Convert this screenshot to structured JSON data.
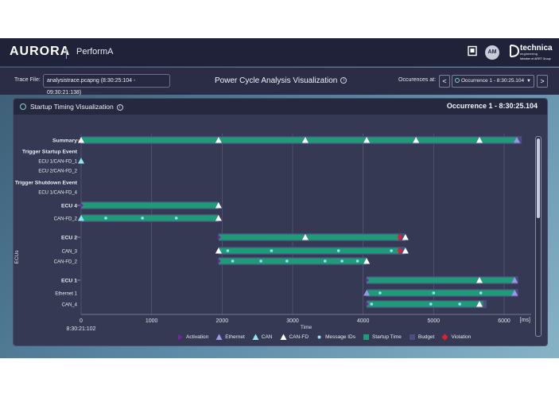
{
  "app": {
    "brand": "AURORA",
    "module": "PerformA",
    "icons": [
      "notes-icon",
      "avatar",
      "technica-logo"
    ],
    "user_initials": "AM",
    "logo": {
      "name": "technica",
      "sub": "engineering",
      "member": "Member of ARRT Group"
    }
  },
  "toolbar": {
    "trace_label": "Trace File:",
    "trace_value": "analysistrace.pcapng (8:30:25:104 - 09:30:21:138)",
    "title": "Power Cycle Analysis Visualization",
    "occurrences_label": "Occurences at:",
    "occurrence_value": "Occurrence 1 - 8:30:25.104",
    "prev": "<",
    "next": ">"
  },
  "panel": {
    "title": "Startup Timing Visualization",
    "occurrence": "Occurrence 1 - 8:30:25.104"
  },
  "chart_data": {
    "type": "gantt",
    "xlabel": "Time",
    "ylabel": "ECUs",
    "x_unit": "[ms]",
    "x_start_label": "8:30:21:102",
    "xlim": [
      0,
      6300
    ],
    "x_ticks": [
      0,
      1000,
      2000,
      3000,
      4000,
      5000,
      6000
    ],
    "grid": true,
    "legend_position": "bottom",
    "colors": {
      "startup": "#1e9c77",
      "budget": "#4b4f80",
      "activation": "#7a1fa2",
      "ethernet": "#9a96e8",
      "can": "#8fe6f0",
      "canfd": "#ffffff",
      "message": "#8fe6f0",
      "violation": "#e0202a"
    },
    "legend": [
      {
        "key": "activation",
        "label": "Activation",
        "shape": "triangle-right"
      },
      {
        "key": "ethernet",
        "label": "Ethernet",
        "shape": "triangle"
      },
      {
        "key": "can",
        "label": "CAN",
        "shape": "triangle"
      },
      {
        "key": "canfd",
        "label": "CAN-FD",
        "shape": "triangle"
      },
      {
        "key": "message",
        "label": "Message IDs",
        "shape": "dot"
      },
      {
        "key": "startup",
        "label": "Startup Time",
        "shape": "square"
      },
      {
        "key": "budget",
        "label": "Budget",
        "shape": "square"
      },
      {
        "key": "violation",
        "label": "Violation",
        "shape": "diamond"
      }
    ],
    "rows": [
      {
        "label": "Summary",
        "bold": true,
        "budget": [
          0,
          6250
        ],
        "startup": [
          0,
          6180
        ],
        "markers": [
          {
            "t": 0,
            "type": "canfd"
          },
          {
            "t": 1950,
            "type": "canfd"
          },
          {
            "t": 3180,
            "type": "canfd"
          },
          {
            "t": 4050,
            "type": "canfd"
          },
          {
            "t": 4750,
            "type": "canfd"
          },
          {
            "t": 5650,
            "type": "canfd"
          },
          {
            "t": 6180,
            "type": "ethernet"
          }
        ]
      },
      {
        "label": "Trigger Startup Event",
        "bold": true
      },
      {
        "label": "ECU 1/CAN-FD_1",
        "markers": [
          {
            "t": 0,
            "type": "can"
          }
        ]
      },
      {
        "label": "ECU 2/CAN-FD_2"
      },
      {
        "label": "Trigger Shutdown Event",
        "bold": true
      },
      {
        "label": "ECU 1/CAN-FD_4"
      },
      {
        "label": "ECU 4",
        "bold": true,
        "budget": [
          0,
          1950
        ],
        "startup": [
          0,
          1950
        ],
        "markers": [
          {
            "t": 0,
            "type": "activation"
          },
          {
            "t": 1950,
            "type": "canfd"
          }
        ]
      },
      {
        "label": "CAN-FD_2",
        "budget": [
          0,
          1950
        ],
        "startup": [
          0,
          1950
        ],
        "markers": [
          {
            "t": 0,
            "type": "can"
          },
          {
            "t": 350,
            "type": "message"
          },
          {
            "t": 870,
            "type": "message"
          },
          {
            "t": 1350,
            "type": "message"
          },
          {
            "t": 1950,
            "type": "canfd"
          }
        ]
      },
      {
        "label": "ECU 2",
        "bold": true,
        "budget": [
          1950,
          4600
        ],
        "startup": [
          1950,
          4500
        ],
        "markers": [
          {
            "t": 1950,
            "type": "activation"
          },
          {
            "t": 3180,
            "type": "canfd"
          },
          {
            "t": 4520,
            "type": "violation"
          },
          {
            "t": 4600,
            "type": "canfd"
          }
        ]
      },
      {
        "label": "CAN_3",
        "budget": [
          1950,
          4600
        ],
        "startup": [
          1950,
          4500
        ],
        "markers": [
          {
            "t": 1950,
            "type": "canfd"
          },
          {
            "t": 2080,
            "type": "message"
          },
          {
            "t": 2700,
            "type": "message"
          },
          {
            "t": 3650,
            "type": "message"
          },
          {
            "t": 4400,
            "type": "message"
          },
          {
            "t": 4520,
            "type": "violation"
          },
          {
            "t": 4600,
            "type": "canfd"
          }
        ]
      },
      {
        "label": "CAN-FD_2",
        "budget": [
          1950,
          4050
        ],
        "startup": [
          1950,
          4050
        ],
        "markers": [
          {
            "t": 1950,
            "type": "activation"
          },
          {
            "t": 2150,
            "type": "message"
          },
          {
            "t": 2550,
            "type": "message"
          },
          {
            "t": 2920,
            "type": "message"
          },
          {
            "t": 3460,
            "type": "message"
          },
          {
            "t": 3700,
            "type": "message"
          },
          {
            "t": 3920,
            "type": "message"
          },
          {
            "t": 4050,
            "type": "canfd"
          }
        ]
      },
      {
        "label": "ECU 1",
        "bold": true,
        "budget": [
          4050,
          6200
        ],
        "startup": [
          4050,
          6150
        ],
        "markers": [
          {
            "t": 4050,
            "type": "activation"
          },
          {
            "t": 5650,
            "type": "canfd"
          },
          {
            "t": 6150,
            "type": "ethernet"
          }
        ]
      },
      {
        "label": "Ethernet 1",
        "budget": [
          4050,
          6200
        ],
        "startup": [
          4050,
          6150
        ],
        "markers": [
          {
            "t": 4050,
            "type": "ethernet"
          },
          {
            "t": 4240,
            "type": "message"
          },
          {
            "t": 5000,
            "type": "message"
          },
          {
            "t": 5670,
            "type": "message"
          },
          {
            "t": 6150,
            "type": "ethernet"
          }
        ]
      },
      {
        "label": "CAN_4",
        "budget": [
          4050,
          5750
        ],
        "startup": [
          4050,
          5700
        ],
        "markers": [
          {
            "t": 4050,
            "type": "activation"
          },
          {
            "t": 4120,
            "type": "message"
          },
          {
            "t": 4960,
            "type": "message"
          },
          {
            "t": 5370,
            "type": "message"
          },
          {
            "t": 5650,
            "type": "canfd"
          }
        ]
      }
    ]
  }
}
